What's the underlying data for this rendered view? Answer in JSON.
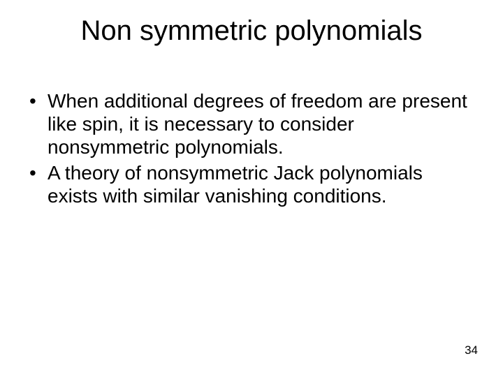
{
  "slide": {
    "title": "Non symmetric polynomials",
    "bullets": [
      "When additional degrees of freedom are present like spin, it is necessary to consider nonsymmetric polynomials.",
      "A theory of nonsymmetric Jack polynomials exists with similar vanishing conditions."
    ],
    "page_number": "34"
  },
  "style": {
    "background_color": "#ffffff",
    "text_color": "#000000",
    "title_fontsize": 40,
    "body_fontsize": 28,
    "pagenum_fontsize": 17,
    "font_family": "Arial"
  }
}
